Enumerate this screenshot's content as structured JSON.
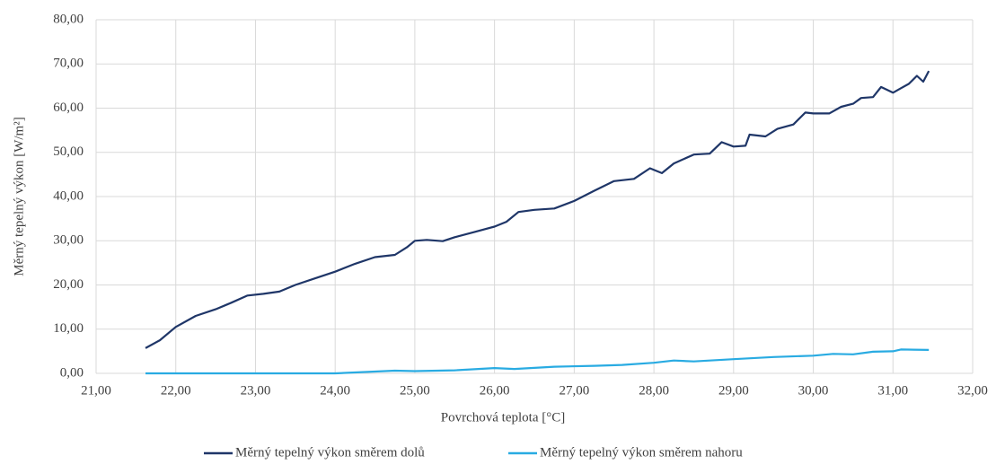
{
  "chart_data": {
    "type": "line",
    "xlabel": "Povrchová teplota [°C]",
    "ylabel": "Měrný tepelný výkon [W/m²]",
    "xlim": [
      21,
      32
    ],
    "xticks": [
      {
        "value": 21,
        "label": "21,00"
      },
      {
        "value": 22,
        "label": "22,00"
      },
      {
        "value": 23,
        "label": "23,00"
      },
      {
        "value": 24,
        "label": "24,00"
      },
      {
        "value": 25,
        "label": "25,00"
      },
      {
        "value": 26,
        "label": "26,00"
      },
      {
        "value": 27,
        "label": "27,00"
      },
      {
        "value": 28,
        "label": "28,00"
      },
      {
        "value": 29,
        "label": "29,00"
      },
      {
        "value": 30,
        "label": "30,00"
      },
      {
        "value": 31,
        "label": "31,00"
      },
      {
        "value": 32,
        "label": "32,00"
      }
    ],
    "ylim": [
      0,
      80
    ],
    "yticks": [
      {
        "value": 0,
        "label": "0,00"
      },
      {
        "value": 10,
        "label": "10,00"
      },
      {
        "value": 20,
        "label": "20,00"
      },
      {
        "value": 30,
        "label": "30,00"
      },
      {
        "value": 40,
        "label": "40,00"
      },
      {
        "value": 50,
        "label": "50,00"
      },
      {
        "value": 60,
        "label": "60,00"
      },
      {
        "value": 70,
        "label": "70,00"
      },
      {
        "value": 80,
        "label": "80,00"
      }
    ],
    "grid": true,
    "legend": "bottom",
    "series": [
      {
        "name": "Měrný tepelný výkon směrem dolů",
        "color": "#1f3668",
        "x": [
          21.62,
          21.8,
          22.0,
          22.25,
          22.5,
          22.7,
          22.9,
          23.1,
          23.3,
          23.5,
          23.75,
          24.0,
          24.25,
          24.5,
          24.75,
          24.9,
          25.0,
          25.15,
          25.35,
          25.5,
          25.75,
          26.0,
          26.15,
          26.3,
          26.5,
          26.75,
          27.0,
          27.25,
          27.5,
          27.75,
          27.95,
          28.1,
          28.25,
          28.5,
          28.7,
          28.85,
          29.0,
          29.15,
          29.2,
          29.4,
          29.55,
          29.75,
          29.9,
          30.0,
          30.2,
          30.35,
          30.5,
          30.6,
          30.75,
          30.85,
          31.0,
          31.1,
          31.2,
          31.3,
          31.38,
          31.45
        ],
        "values": [
          5.7,
          7.5,
          10.5,
          13,
          14.5,
          16,
          17.6,
          18,
          18.5,
          20,
          21.5,
          23,
          24.8,
          26.3,
          26.8,
          28.5,
          30,
          30.2,
          29.9,
          30.8,
          32,
          33.2,
          34.3,
          36.5,
          37,
          37.3,
          39,
          41.3,
          43.5,
          44,
          46.4,
          45.3,
          47.5,
          49.5,
          49.7,
          52.3,
          51.3,
          51.5,
          54,
          53.6,
          55.3,
          56.3,
          59,
          58.8,
          58.8,
          60.3,
          61,
          62.3,
          62.5,
          64.8,
          63.5,
          64.5,
          65.5,
          67.3,
          66,
          68.4
        ]
      },
      {
        "name": "Měrný tepelný výkon směrem nahoru",
        "color": "#29abe2",
        "x": [
          21.62,
          24.0,
          24.5,
          24.75,
          25.0,
          25.5,
          26.0,
          26.25,
          26.75,
          27.25,
          27.6,
          28.0,
          28.25,
          28.5,
          29.0,
          29.5,
          30.0,
          30.25,
          30.5,
          30.75,
          31.0,
          31.1,
          31.45
        ],
        "values": [
          0,
          0,
          0.4,
          0.6,
          0.5,
          0.7,
          1.2,
          1.0,
          1.5,
          1.7,
          1.9,
          2.4,
          2.9,
          2.7,
          3.2,
          3.7,
          4.0,
          4.4,
          4.3,
          4.9,
          5.0,
          5.4,
          5.3
        ]
      }
    ]
  }
}
